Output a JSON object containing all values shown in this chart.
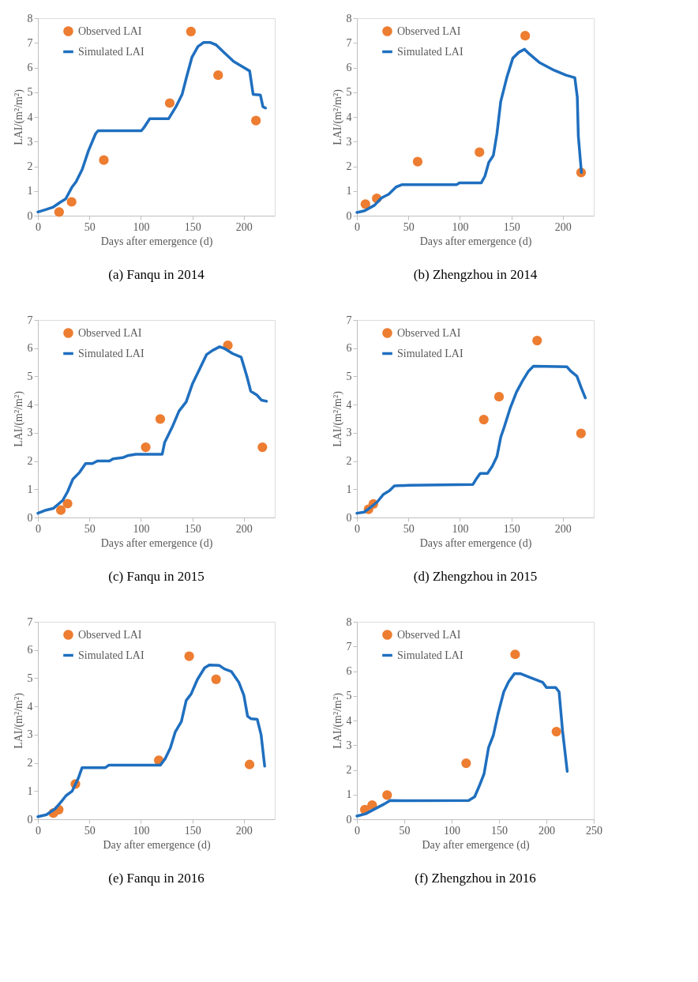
{
  "chart_data": [
    {
      "type": "line",
      "title": "(a) Fanqu in 2014",
      "xlabel": "Days after emergence (d)",
      "ylabel": "LAI/(m²/m²)",
      "xlim": [
        0,
        230
      ],
      "xticks": [
        0,
        50,
        100,
        150,
        200
      ],
      "ylim": [
        0,
        8
      ],
      "yticks": [
        0,
        1,
        2,
        3,
        4,
        5,
        6,
        7,
        8
      ],
      "legend": "top left",
      "grid": false,
      "series": [
        {
          "name": "Observed LAI",
          "type": "scatter",
          "marker": "circle",
          "color": "#ed7d31",
          "x": [
            20.6,
            32.7,
            64,
            128,
            148.6,
            175,
            211.7
          ],
          "values": [
            0.15,
            0.56,
            2.25,
            4.56,
            7.46,
            5.69,
            3.85
          ]
        },
        {
          "name": "Simulated LAI",
          "type": "line",
          "color": "#1f6fbf",
          "x": [
            0,
            8,
            15,
            22,
            27,
            33,
            37,
            43,
            49,
            56,
            58.4,
            100.5,
            103,
            108.6,
            127,
            134,
            140,
            144,
            149.5,
            155.4,
            161,
            167,
            173,
            181,
            190,
            200,
            205.6,
            209,
            216,
            218.5,
            221
          ],
          "values": [
            0.15,
            0.25,
            0.35,
            0.55,
            0.68,
            1.15,
            1.37,
            1.87,
            2.62,
            3.32,
            3.44,
            3.44,
            3.57,
            3.93,
            3.93,
            4.41,
            4.91,
            5.56,
            6.41,
            6.85,
            7.02,
            7.02,
            6.92,
            6.6,
            6.25,
            6.0,
            5.86,
            4.91,
            4.89,
            4.41,
            4.36
          ]
        }
      ]
    },
    {
      "type": "line",
      "title": "(b) Zhengzhou in 2014",
      "xlabel": "Days after emergence (d)",
      "ylabel": "LAI/(m²/m²)",
      "xlim": [
        0,
        230
      ],
      "xticks": [
        0,
        50,
        100,
        150,
        200
      ],
      "ylim": [
        0,
        8
      ],
      "yticks": [
        0,
        1,
        2,
        3,
        4,
        5,
        6,
        7,
        8
      ],
      "legend": "top left",
      "grid": false,
      "series": [
        {
          "name": "Observed LAI",
          "type": "scatter",
          "marker": "circle",
          "color": "#ed7d31",
          "x": [
            8.3,
            19.3,
            59,
            119,
            163.4,
            217.7
          ],
          "values": [
            0.47,
            0.7,
            2.19,
            2.57,
            7.29,
            1.75
          ]
        },
        {
          "name": "Simulated LAI",
          "type": "line",
          "color": "#1f6fbf",
          "x": [
            0,
            7.5,
            17,
            24,
            31,
            38,
            44,
            97,
            99.5,
            120.8,
            124.3,
            128,
            132.5,
            136,
            139.6,
            145.5,
            151.4,
            157.3,
            162.7,
            168,
            177,
            191.5,
            203,
            211.6,
            214,
            215,
            218
          ],
          "values": [
            0.13,
            0.2,
            0.42,
            0.72,
            0.87,
            1.16,
            1.26,
            1.26,
            1.33,
            1.33,
            1.6,
            2.15,
            2.44,
            3.33,
            4.61,
            5.59,
            6.38,
            6.62,
            6.74,
            6.53,
            6.21,
            5.89,
            5.69,
            5.59,
            4.8,
            3.23,
            1.75
          ]
        }
      ]
    },
    {
      "type": "line",
      "title": "(c) Fanqu in 2015",
      "xlabel": "Days after emergence (d)",
      "ylabel": "LAI/(m²/m²)",
      "xlim": [
        0,
        230
      ],
      "xticks": [
        0,
        50,
        100,
        150,
        200
      ],
      "ylim": [
        0,
        7
      ],
      "yticks": [
        0,
        1,
        2,
        3,
        4,
        5,
        6,
        7
      ],
      "legend": "top left",
      "grid": false,
      "series": [
        {
          "name": "Observed LAI",
          "type": "scatter",
          "marker": "circle",
          "color": "#ed7d31",
          "x": [
            22.3,
            28.8,
            104.7,
            118.8,
            184.4,
            218
          ],
          "values": [
            0.26,
            0.49,
            2.49,
            3.49,
            6.1,
            2.49
          ]
        },
        {
          "name": "Simulated LAI",
          "type": "line",
          "color": "#1f6fbf",
          "x": [
            0,
            7.9,
            14.9,
            24.2,
            28.8,
            34,
            40.5,
            46.3,
            53,
            57.7,
            69.5,
            73,
            82.3,
            87,
            95,
            120.7,
            123,
            131,
            137,
            144,
            150,
            157.9,
            163.7,
            169.5,
            176.5,
            181,
            189,
            197.4,
            203,
            206.7,
            212.6,
            217,
            222
          ],
          "values": [
            0.15,
            0.26,
            0.32,
            0.61,
            0.91,
            1.36,
            1.6,
            1.91,
            1.91,
            2.0,
            2.0,
            2.08,
            2.12,
            2.19,
            2.24,
            2.24,
            2.65,
            3.25,
            3.77,
            4.1,
            4.73,
            5.33,
            5.77,
            5.92,
            6.05,
            5.99,
            5.81,
            5.68,
            4.99,
            4.47,
            4.34,
            4.16,
            4.12
          ]
        }
      ]
    },
    {
      "type": "line",
      "title": "(d) Zhengzhou in 2015",
      "xlabel": "Days after emergence (d)",
      "ylabel": "LAI/(m²/m²)",
      "xlim": [
        0,
        230
      ],
      "xticks": [
        0,
        50,
        100,
        150,
        200
      ],
      "ylim": [
        0,
        7
      ],
      "yticks": [
        0,
        1,
        2,
        3,
        4,
        5,
        6,
        7
      ],
      "legend": "top left",
      "grid": false,
      "series": [
        {
          "name": "Observed LAI",
          "type": "scatter",
          "marker": "circle",
          "color": "#ed7d31",
          "x": [
            11.3,
            16,
            123.2,
            138,
            175,
            217.6
          ],
          "values": [
            0.29,
            0.48,
            3.47,
            4.28,
            6.27,
            2.98
          ]
        },
        {
          "name": "Simulated LAI",
          "type": "line",
          "color": "#1f6fbf",
          "x": [
            0,
            7,
            13,
            20,
            25.8,
            31.7,
            36.4,
            50.5,
            112.7,
            116.2,
            119.7,
            126.8,
            131.5,
            136,
            139.7,
            143,
            149,
            155,
            160.8,
            166.7,
            171.4,
            204,
            207.5,
            213.6,
            218,
            221.8
          ],
          "values": [
            0.15,
            0.19,
            0.35,
            0.56,
            0.82,
            0.95,
            1.12,
            1.14,
            1.17,
            1.38,
            1.56,
            1.56,
            1.82,
            2.16,
            2.85,
            3.2,
            3.89,
            4.45,
            4.84,
            5.19,
            5.36,
            5.34,
            5.19,
            5.01,
            4.58,
            4.24
          ]
        }
      ]
    },
    {
      "type": "line",
      "title": "(e) Fanqu in 2016",
      "xlabel": "Day after emergence (d)",
      "ylabel": "LAI/(m²/m²)",
      "xlim": [
        0,
        230
      ],
      "xticks": [
        0,
        50,
        100,
        150,
        200
      ],
      "ylim": [
        0,
        7
      ],
      "yticks": [
        0,
        1,
        2,
        3,
        4,
        5,
        6,
        7
      ],
      "legend": "top left",
      "grid": false,
      "series": [
        {
          "name": "Observed LAI",
          "type": "scatter",
          "marker": "circle",
          "color": "#ed7d31",
          "x": [
            15,
            20.2,
            36.4,
            117.4,
            146.9,
            173,
            205.5
          ],
          "values": [
            0.22,
            0.34,
            1.25,
            2.09,
            5.78,
            4.96,
            1.94
          ]
        },
        {
          "name": "Simulated LAI",
          "type": "line",
          "color": "#1f6fbf",
          "x": [
            0,
            8.3,
            16.7,
            22.6,
            27.4,
            33.3,
            39.3,
            42.9,
            65.5,
            69,
            119,
            123.8,
            128.6,
            133.3,
            139.3,
            144,
            148.8,
            154.8,
            161.9,
            166.7,
            176.2,
            181,
            188,
            195,
            200,
            203.6,
            207,
            213,
            216.7,
            220.2
          ],
          "values": [
            0.09,
            0.16,
            0.37,
            0.62,
            0.84,
            1.0,
            1.46,
            1.83,
            1.83,
            1.92,
            1.92,
            2.16,
            2.53,
            3.09,
            3.46,
            4.21,
            4.44,
            4.95,
            5.37,
            5.47,
            5.45,
            5.33,
            5.23,
            4.86,
            4.39,
            3.65,
            3.56,
            3.54,
            3.0,
            1.88
          ]
        }
      ]
    },
    {
      "type": "line",
      "title": "(f) Zhengzhou in 2016",
      "xlabel": "Day after emergence (d)",
      "ylabel": "LAI/(m²/m²)",
      "xlim": [
        0,
        250
      ],
      "xticks": [
        0,
        50,
        100,
        150,
        200,
        250
      ],
      "ylim": [
        0,
        8
      ],
      "yticks": [
        0,
        1,
        2,
        3,
        4,
        5,
        6,
        7,
        8
      ],
      "legend": "top left",
      "grid": false,
      "series": [
        {
          "name": "Observed LAI",
          "type": "scatter",
          "marker": "circle",
          "color": "#ed7d31",
          "x": [
            8.4,
            16.1,
            31.9,
            115.3,
            167,
            210.6
          ],
          "values": [
            0.39,
            0.57,
            0.98,
            2.27,
            6.68,
            3.55
          ]
        },
        {
          "name": "Simulated LAI",
          "type": "line",
          "color": "#1f6fbf",
          "x": [
            0,
            9.2,
            19,
            29,
            35,
            56.2,
            118,
            124.3,
            129.2,
            134.2,
            139,
            144,
            149,
            155,
            160,
            166.3,
            172.5,
            182.4,
            196,
            200,
            209.7,
            213.4,
            217,
            222
          ],
          "values": [
            0.13,
            0.22,
            0.42,
            0.62,
            0.76,
            0.75,
            0.76,
            0.91,
            1.35,
            1.84,
            2.91,
            3.4,
            4.28,
            5.16,
            5.56,
            5.9,
            5.9,
            5.75,
            5.55,
            5.34,
            5.34,
            5.16,
            3.6,
            1.94
          ]
        }
      ]
    }
  ]
}
